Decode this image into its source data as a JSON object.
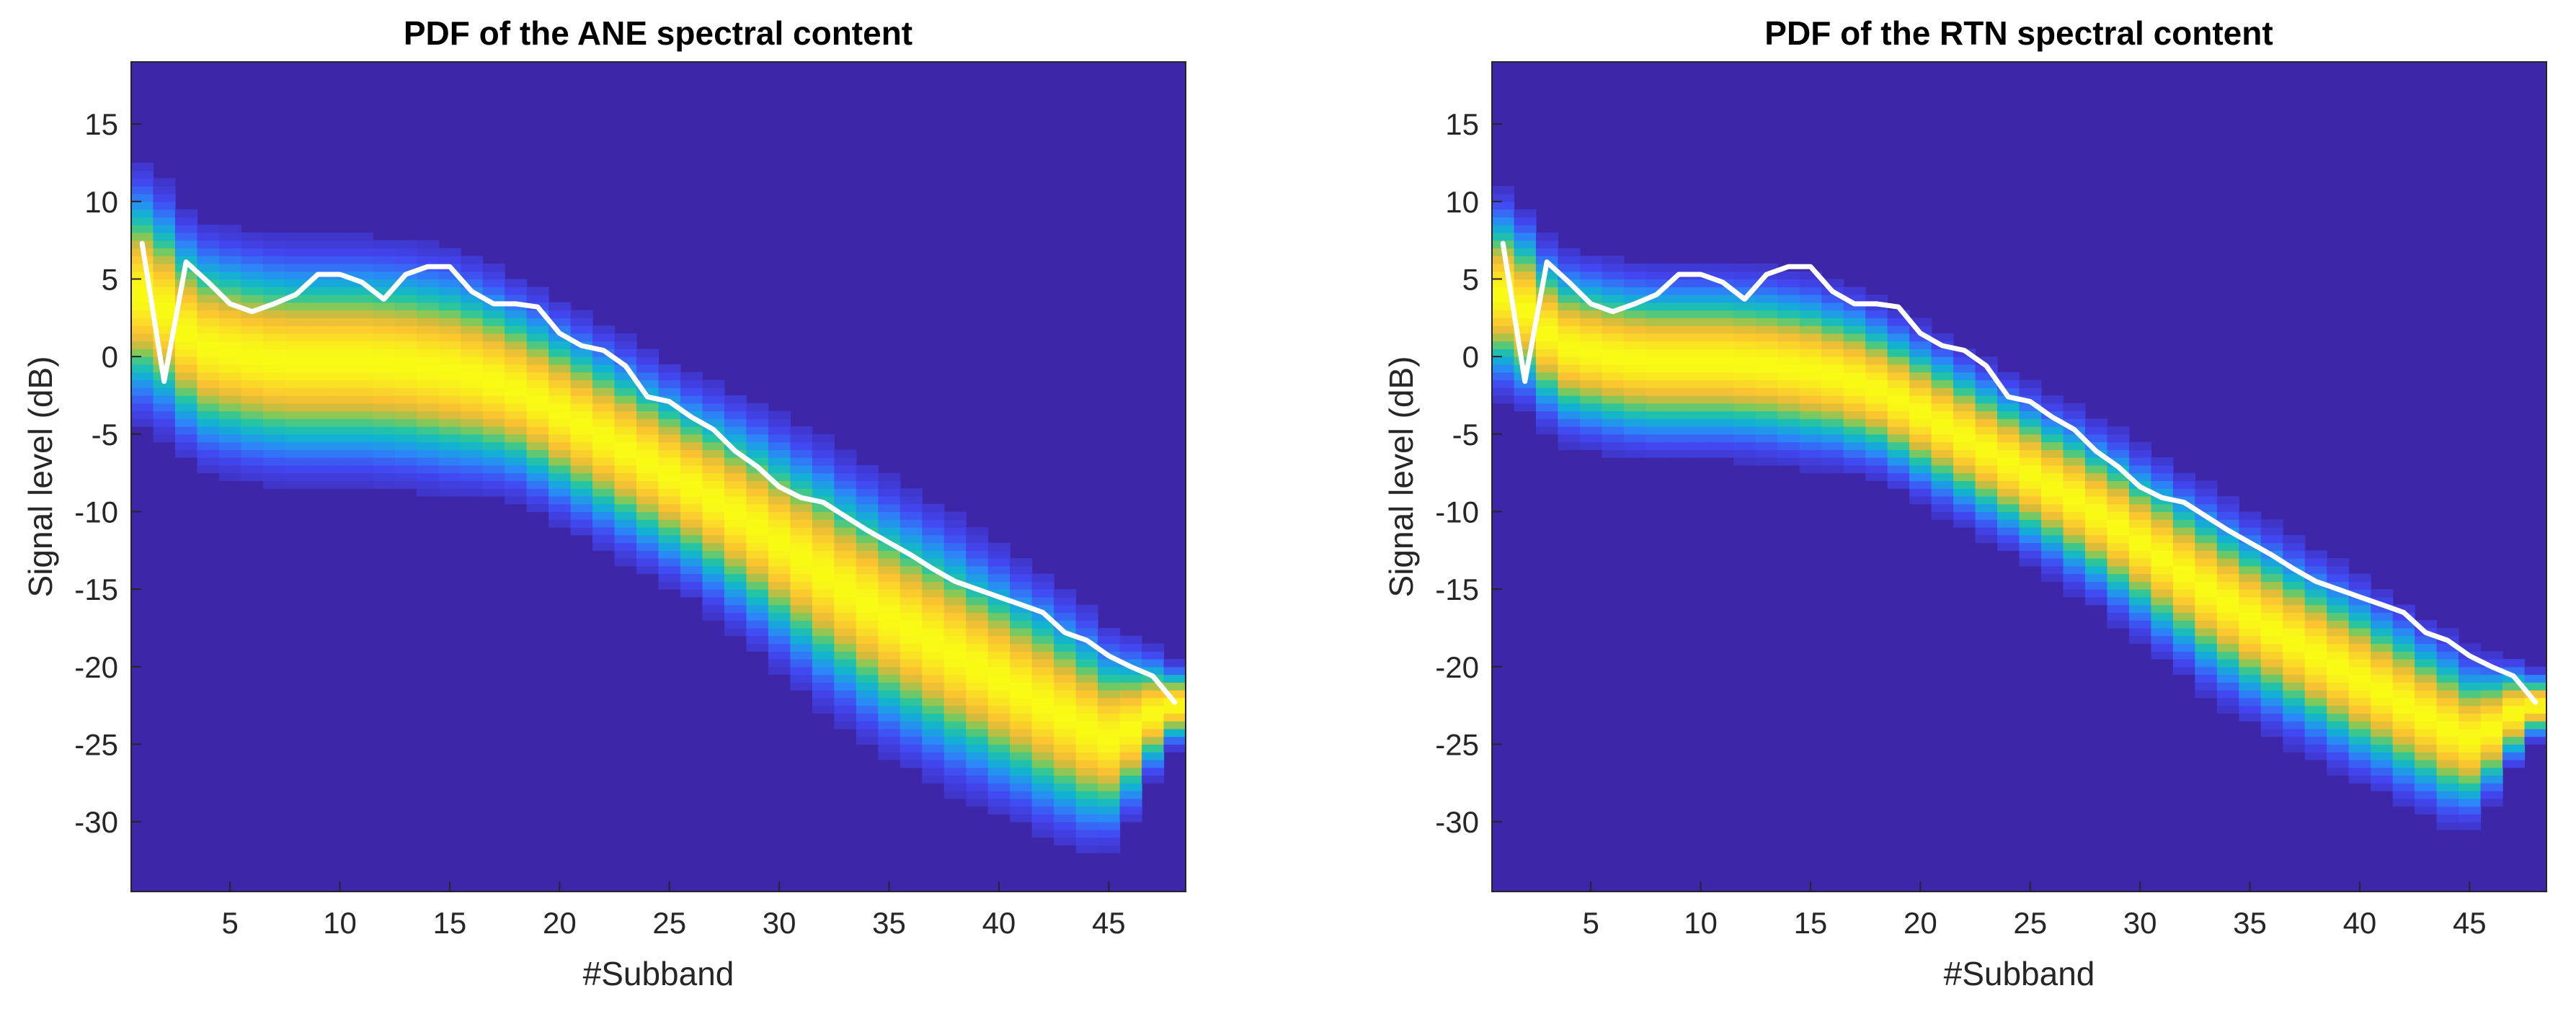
{
  "figure": {
    "background": "#ffffff",
    "colors": {
      "plot_background": "#3d26a8",
      "median_line": "#ffffff",
      "axis_text": "#262626",
      "colormap": [
        "#3e26a8",
        "#4247f1",
        "#2c87f8",
        "#12b1d3",
        "#26c5a0",
        "#7fc95a",
        "#d4bb3c",
        "#fbc231",
        "#fadc27",
        "#f9fb14"
      ]
    }
  },
  "chart_data": [
    {
      "type": "heatmap",
      "title": "PDF of the ANE spectral content",
      "xlabel": "#Subband",
      "ylabel": "Signal level (dB)",
      "xlim": [
        0.5,
        48.5
      ],
      "ylim": [
        -34.5,
        19
      ],
      "xticks": [
        5,
        10,
        15,
        20,
        25,
        30,
        35,
        40,
        45
      ],
      "yticks": [
        15,
        10,
        5,
        0,
        -5,
        -10,
        -15,
        -20,
        -25,
        -30
      ],
      "density_ridge_dB": [
        4.0,
        3.0,
        1.5,
        0.6,
        0.3,
        0.0,
        -0.2,
        -0.3,
        -0.3,
        -0.3,
        -0.3,
        -0.4,
        -0.5,
        -0.7,
        -0.9,
        -1.2,
        -1.6,
        -2.1,
        -2.8,
        -3.6,
        -4.4,
        -5.2,
        -6.0,
        -6.8,
        -7.6,
        -8.4,
        -9.2,
        -10.1,
        -11.0,
        -12.0,
        -13.0,
        -14.0,
        -15.0,
        -15.9,
        -16.8,
        -17.6,
        -18.4,
        -19.2,
        -20.0,
        -20.8,
        -21.6,
        -22.4,
        -23.2,
        -24.0,
        -24.6,
        -24.0,
        -23.0,
        -22.5
      ],
      "density_spread_dB": [
        3.5,
        3.4,
        3.3,
        3.3,
        3.3,
        3.3,
        3.3,
        3.3,
        3.3,
        3.3,
        3.3,
        3.3,
        3.3,
        3.3,
        3.3,
        3.2,
        3.1,
        3.0,
        3.0,
        3.0,
        3.0,
        3.0,
        3.0,
        3.0,
        3.0,
        3.0,
        3.1,
        3.2,
        3.3,
        3.4,
        3.5,
        3.6,
        3.6,
        3.7,
        3.7,
        3.7,
        3.7,
        3.7,
        3.6,
        3.6,
        3.5,
        3.5,
        3.4,
        3.3,
        3.0,
        2.5,
        1.8,
        1.2
      ],
      "series": [
        {
          "name": "median",
          "x": [
            1,
            2,
            3,
            4,
            5,
            6,
            7,
            8,
            9,
            10,
            11,
            12,
            13,
            14,
            15,
            16,
            17,
            18,
            19,
            20,
            21,
            22,
            23,
            24,
            25,
            26,
            27,
            28,
            29,
            30,
            31,
            32,
            33,
            34,
            35,
            36,
            37,
            38,
            39,
            40,
            41,
            42,
            43,
            44,
            45,
            46,
            47,
            48
          ],
          "values": [
            7.3,
            -1.6,
            6.1,
            4.8,
            3.4,
            2.9,
            3.4,
            4.0,
            5.3,
            5.3,
            4.8,
            3.7,
            5.3,
            5.8,
            5.8,
            4.2,
            3.4,
            3.4,
            3.2,
            1.5,
            0.7,
            0.4,
            -0.6,
            -2.6,
            -2.9,
            -3.9,
            -4.7,
            -6.1,
            -7.1,
            -8.4,
            -9.1,
            -9.4,
            -10.3,
            -11.2,
            -12.0,
            -12.8,
            -13.7,
            -14.5,
            -15.0,
            -15.5,
            -16.0,
            -16.5,
            -17.8,
            -18.3,
            -19.3,
            -20.0,
            -20.6,
            -22.3
          ]
        }
      ]
    },
    {
      "type": "heatmap",
      "title": "PDF of the RTN spectral content",
      "xlabel": "#Subband",
      "ylabel": "Signal level (dB)",
      "xlim": [
        0.5,
        48.5
      ],
      "ylim": [
        -34.5,
        19
      ],
      "xticks": [
        5,
        10,
        15,
        20,
        25,
        30,
        35,
        40,
        45
      ],
      "yticks": [
        15,
        10,
        5,
        0,
        -5,
        -10,
        -15,
        -20,
        -25,
        -30
      ],
      "density_ridge_dB": [
        4.0,
        3.0,
        1.5,
        0.6,
        0.3,
        0.0,
        -0.2,
        -0.3,
        -0.3,
        -0.3,
        -0.3,
        -0.4,
        -0.5,
        -0.7,
        -0.9,
        -1.2,
        -1.6,
        -2.1,
        -2.8,
        -3.6,
        -4.4,
        -5.2,
        -6.0,
        -6.8,
        -7.6,
        -8.4,
        -9.2,
        -10.1,
        -11.0,
        -12.0,
        -13.0,
        -14.0,
        -15.0,
        -15.9,
        -16.8,
        -17.6,
        -18.4,
        -19.2,
        -20.0,
        -20.8,
        -21.6,
        -22.4,
        -23.2,
        -24.0,
        -24.6,
        -24.0,
        -23.0,
        -22.5
      ],
      "density_spread_dB": [
        2.8,
        2.7,
        2.6,
        2.6,
        2.6,
        2.6,
        2.6,
        2.6,
        2.6,
        2.6,
        2.6,
        2.6,
        2.6,
        2.6,
        2.6,
        2.5,
        2.5,
        2.4,
        2.4,
        2.4,
        2.4,
        2.4,
        2.4,
        2.4,
        2.4,
        2.4,
        2.5,
        2.5,
        2.6,
        2.6,
        2.7,
        2.7,
        2.8,
        2.8,
        2.8,
        2.8,
        2.8,
        2.8,
        2.8,
        2.8,
        2.7,
        2.7,
        2.6,
        2.6,
        2.4,
        2.0,
        1.5,
        1.0
      ],
      "series": [
        {
          "name": "median",
          "x": [
            1,
            2,
            3,
            4,
            5,
            6,
            7,
            8,
            9,
            10,
            11,
            12,
            13,
            14,
            15,
            16,
            17,
            18,
            19,
            20,
            21,
            22,
            23,
            24,
            25,
            26,
            27,
            28,
            29,
            30,
            31,
            32,
            33,
            34,
            35,
            36,
            37,
            38,
            39,
            40,
            41,
            42,
            43,
            44,
            45,
            46,
            47,
            48
          ],
          "values": [
            7.3,
            -1.6,
            6.1,
            4.8,
            3.4,
            2.9,
            3.4,
            4.0,
            5.3,
            5.3,
            4.8,
            3.7,
            5.3,
            5.8,
            5.8,
            4.2,
            3.4,
            3.4,
            3.2,
            1.5,
            0.7,
            0.4,
            -0.6,
            -2.6,
            -2.9,
            -3.9,
            -4.7,
            -6.1,
            -7.1,
            -8.4,
            -9.1,
            -9.4,
            -10.3,
            -11.2,
            -12.0,
            -12.8,
            -13.7,
            -14.5,
            -15.0,
            -15.5,
            -16.0,
            -16.5,
            -17.8,
            -18.3,
            -19.3,
            -20.0,
            -20.6,
            -22.3
          ]
        }
      ]
    }
  ]
}
